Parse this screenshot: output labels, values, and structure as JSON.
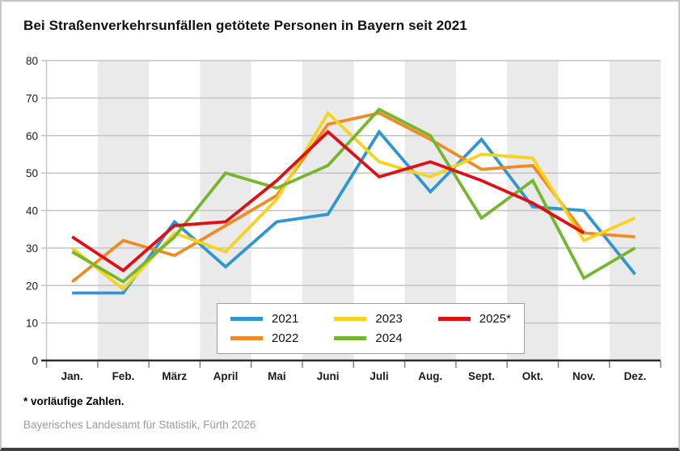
{
  "header": {
    "title": "Bei Straßenverkehrsunfällen getötete Personen in Bayern seit 2021"
  },
  "chart_data": {
    "type": "line",
    "title": "Bei Straßenverkehrsunfällen getötete Personen in Bayern seit 2021",
    "categories": [
      "Jan.",
      "Feb.",
      "März",
      "April",
      "Mai",
      "Juni",
      "Juli",
      "Aug.",
      "Sept.",
      "Okt.",
      "Nov.",
      "Dez."
    ],
    "series": [
      {
        "name": "2021",
        "color": "#2e96d2",
        "values": [
          18,
          18,
          37,
          25,
          37,
          39,
          61,
          45,
          59,
          41,
          40,
          23
        ]
      },
      {
        "name": "2022",
        "color": "#f08a24",
        "values": [
          21,
          32,
          28,
          36,
          44,
          63,
          66,
          59,
          51,
          52,
          34,
          33
        ]
      },
      {
        "name": "2023",
        "color": "#f8d21c",
        "values": [
          30,
          19,
          34,
          29,
          43,
          66,
          53,
          49,
          55,
          54,
          32,
          38
        ]
      },
      {
        "name": "2024",
        "color": "#74b62d",
        "values": [
          29,
          21,
          33,
          50,
          46,
          52,
          67,
          60,
          38,
          48,
          22,
          30
        ]
      },
      {
        "name": "2025*",
        "color": "#de1016",
        "values": [
          33,
          24,
          36,
          37,
          48,
          61,
          49,
          53,
          48,
          42,
          34,
          null
        ]
      }
    ],
    "ylim": [
      0,
      80
    ],
    "ytick_labels": [
      "0",
      "10",
      "20",
      "30",
      "40",
      "50",
      "60",
      "70",
      "80"
    ],
    "grid": "horizontal",
    "gridline_color": "#c3c3c3",
    "axis_color": "#2b2b2b",
    "band_color": "#eaeaea",
    "shaded_slots": [
      1,
      3,
      5,
      7,
      9,
      11
    ],
    "legend_position": "bottom-center-overlay",
    "legend_rows": [
      [
        "2021",
        "2023",
        "2025*"
      ],
      [
        "2022",
        "2024"
      ]
    ]
  },
  "footnote": {
    "text": "* vorläufige Zahlen."
  },
  "source": {
    "text": "Bayerisches Landesamt für Statistik, Fürth 2026"
  }
}
